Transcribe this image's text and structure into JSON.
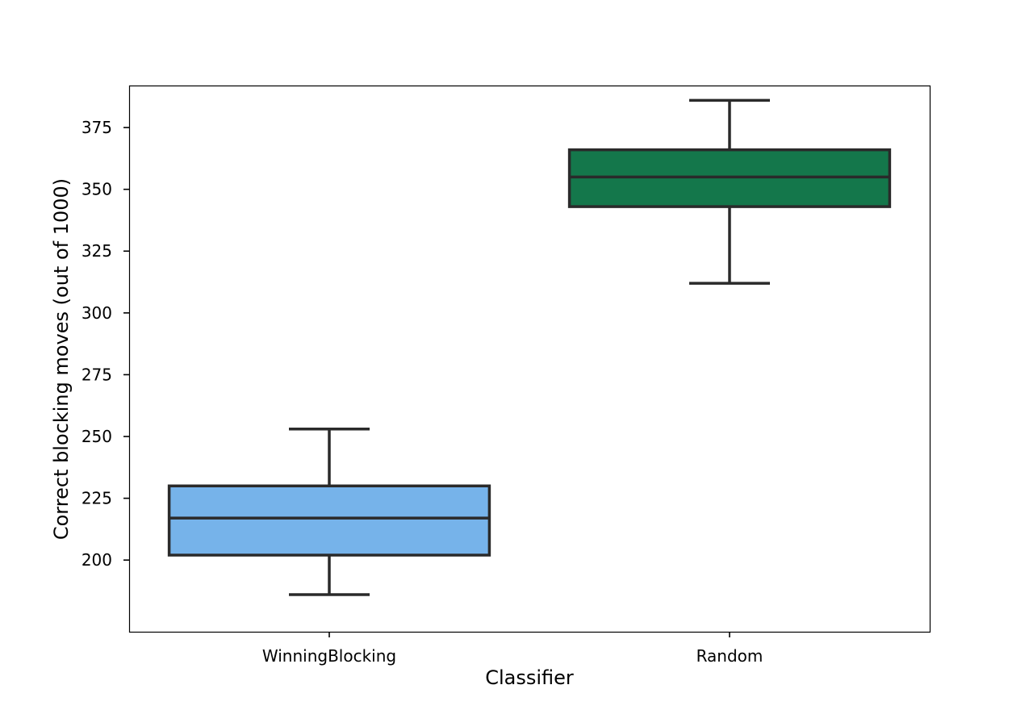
{
  "chart_data": {
    "type": "box",
    "xlabel": "Classifier",
    "ylabel": "Correct blocking moves (out of 1000)",
    "ylim": [
      171,
      392
    ],
    "yticks": [
      200,
      225,
      250,
      275,
      300,
      325,
      350,
      375
    ],
    "grid": false,
    "categories": [
      "WinningBlocking",
      "Random"
    ],
    "boxes": [
      {
        "category": "WinningBlocking",
        "whisker_low": 186,
        "q1": 202,
        "median": 217,
        "q3": 230,
        "whisker_high": 253,
        "color": "#76b3ea"
      },
      {
        "category": "Random",
        "whisker_low": 312,
        "q1": 343,
        "median": 355,
        "q3": 366,
        "whisker_high": 386,
        "color": "#14774b"
      }
    ],
    "edge_color": "#2a2a2a"
  }
}
